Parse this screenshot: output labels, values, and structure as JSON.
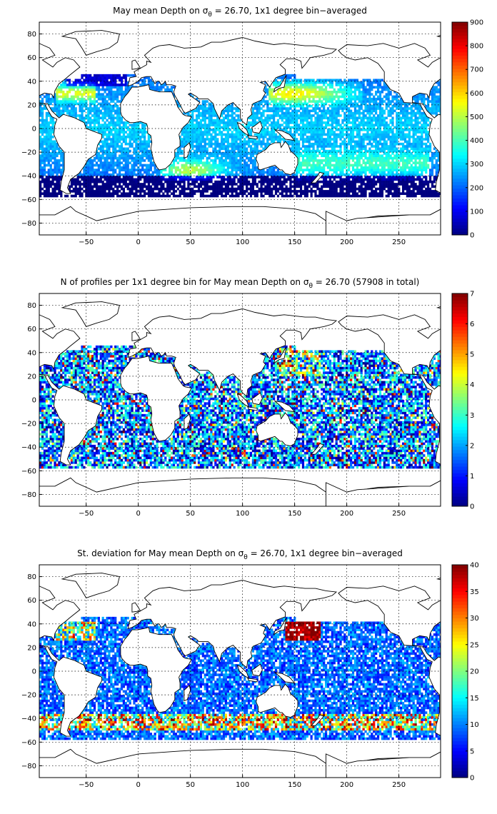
{
  "chart_data": [
    {
      "type": "heatmap",
      "title_pre": "May mean Depth on ",
      "title_sigma": "σ",
      "title_sub": "θ",
      "title_post": " = 26.70, 1x1 degree bin−averaged",
      "xlim": [
        -95,
        290
      ],
      "ylim": [
        -90,
        90
      ],
      "xticks": [
        -50,
        0,
        50,
        100,
        150,
        200,
        250
      ],
      "yticks": [
        80,
        60,
        40,
        20,
        0,
        -20,
        -40,
        -60,
        -80
      ],
      "grid": true,
      "colormap": "jet",
      "clim": [
        0,
        900
      ],
      "colorbar_ticks": [
        0,
        100,
        200,
        300,
        400,
        500,
        600,
        700,
        800,
        900
      ],
      "field": "depth"
    },
    {
      "type": "heatmap",
      "title_pre": "N of profiles per 1x1 degree bin for May mean Depth on ",
      "title_sigma": "σ",
      "title_sub": "θ",
      "title_post": " = 26.70 (57908 in total)",
      "xlim": [
        -95,
        290
      ],
      "ylim": [
        -90,
        90
      ],
      "xticks": [
        -50,
        0,
        50,
        100,
        150,
        200,
        250
      ],
      "yticks": [
        80,
        60,
        40,
        20,
        0,
        -20,
        -40,
        -60,
        -80
      ],
      "grid": true,
      "colormap": "jet",
      "clim": [
        0,
        7
      ],
      "colorbar_ticks": [
        0,
        1,
        2,
        3,
        4,
        5,
        6,
        7
      ],
      "total_profiles": 57908,
      "field": "count"
    },
    {
      "type": "heatmap",
      "title_pre": "St. deviation for May mean Depth on ",
      "title_sigma": "σ",
      "title_sub": "θ",
      "title_post": " = 26.70, 1x1 degree bin−averaged",
      "xlim": [
        -95,
        290
      ],
      "ylim": [
        -90,
        90
      ],
      "xticks": [
        -50,
        0,
        50,
        100,
        150,
        200,
        250
      ],
      "yticks": [
        80,
        60,
        40,
        20,
        0,
        -20,
        -40,
        -60,
        -80
      ],
      "grid": true,
      "colormap": "jet",
      "clim": [
        0,
        40
      ],
      "colorbar_ticks": [
        0,
        5,
        10,
        15,
        20,
        25,
        30,
        35,
        40
      ],
      "field": "std"
    }
  ]
}
